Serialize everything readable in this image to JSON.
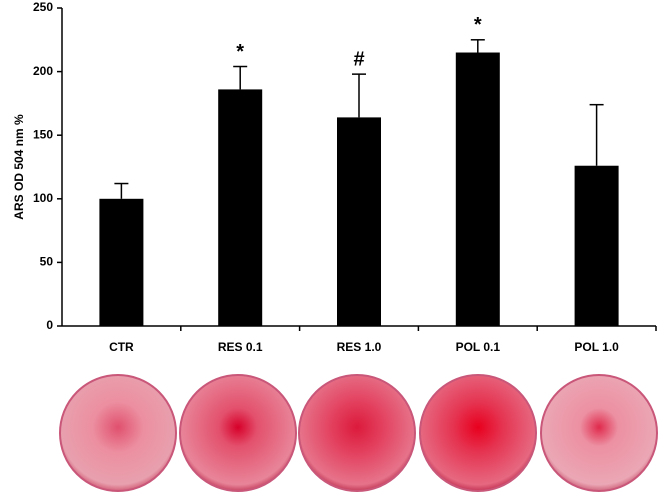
{
  "chart_data": {
    "type": "bar",
    "y_label": "ARS OD 504 nm %",
    "categories": [
      "CTR",
      "RES 0.1",
      "RES 1.0",
      "POL 0.1",
      "POL 1.0"
    ],
    "values": [
      100,
      186,
      164,
      215,
      126
    ],
    "errors": [
      12,
      18,
      34,
      10,
      48
    ],
    "annotations": [
      null,
      "*",
      "#",
      "*",
      null
    ],
    "color": "#000000",
    "ylim": [
      0,
      250
    ],
    "yticks": [
      0,
      50,
      100,
      150,
      200,
      250
    ],
    "grid": false
  }
}
